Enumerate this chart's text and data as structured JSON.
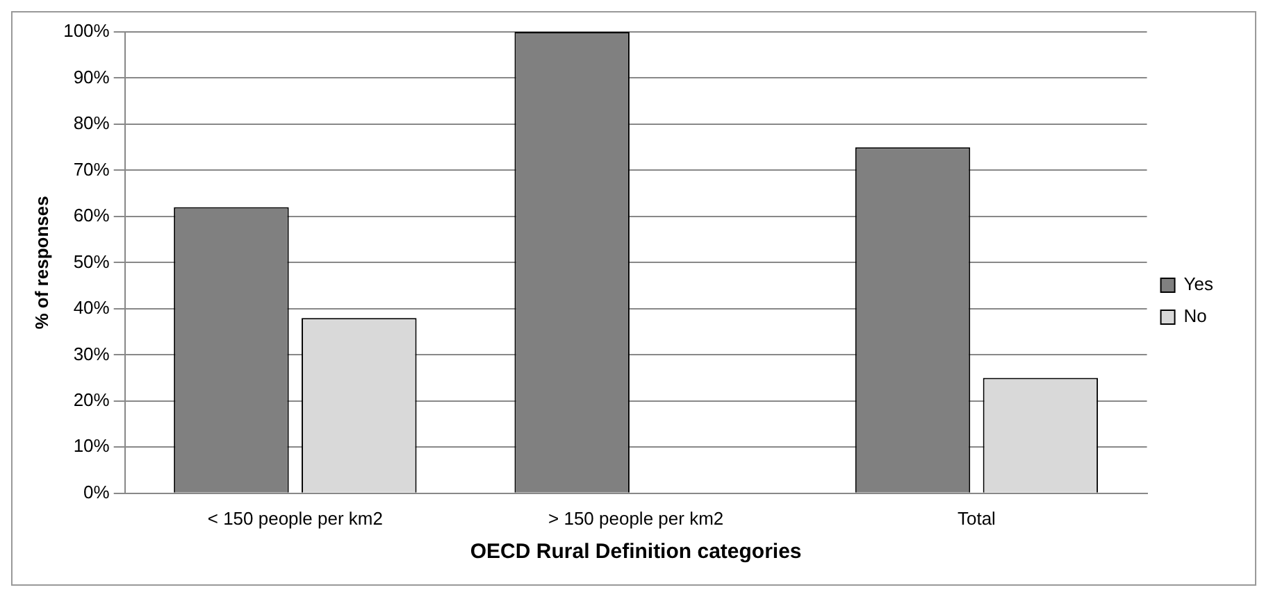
{
  "chart_data": {
    "type": "bar",
    "xlabel": "OECD Rural Definition categories",
    "ylabel": "% of responses",
    "categories": [
      "< 150 people per km2",
      "> 150 people per km2",
      "Total"
    ],
    "series": [
      {
        "name": "Yes",
        "color": "#808080",
        "values": [
          62,
          100,
          75
        ]
      },
      {
        "name": "No",
        "color": "#d9d9d9",
        "values": [
          38,
          0,
          25
        ]
      }
    ],
    "ylim": [
      0,
      100
    ],
    "yticks": [
      {
        "value": 0,
        "label": "0%"
      },
      {
        "value": 10,
        "label": "10%"
      },
      {
        "value": 20,
        "label": "20%"
      },
      {
        "value": 30,
        "label": "30%"
      },
      {
        "value": 40,
        "label": "40%"
      },
      {
        "value": 50,
        "label": "50%"
      },
      {
        "value": 60,
        "label": "60%"
      },
      {
        "value": 70,
        "label": "70%"
      },
      {
        "value": 80,
        "label": "80%"
      },
      {
        "value": 90,
        "label": "90%"
      },
      {
        "value": 100,
        "label": "100%"
      }
    ],
    "grid": "y",
    "legend": "right"
  }
}
